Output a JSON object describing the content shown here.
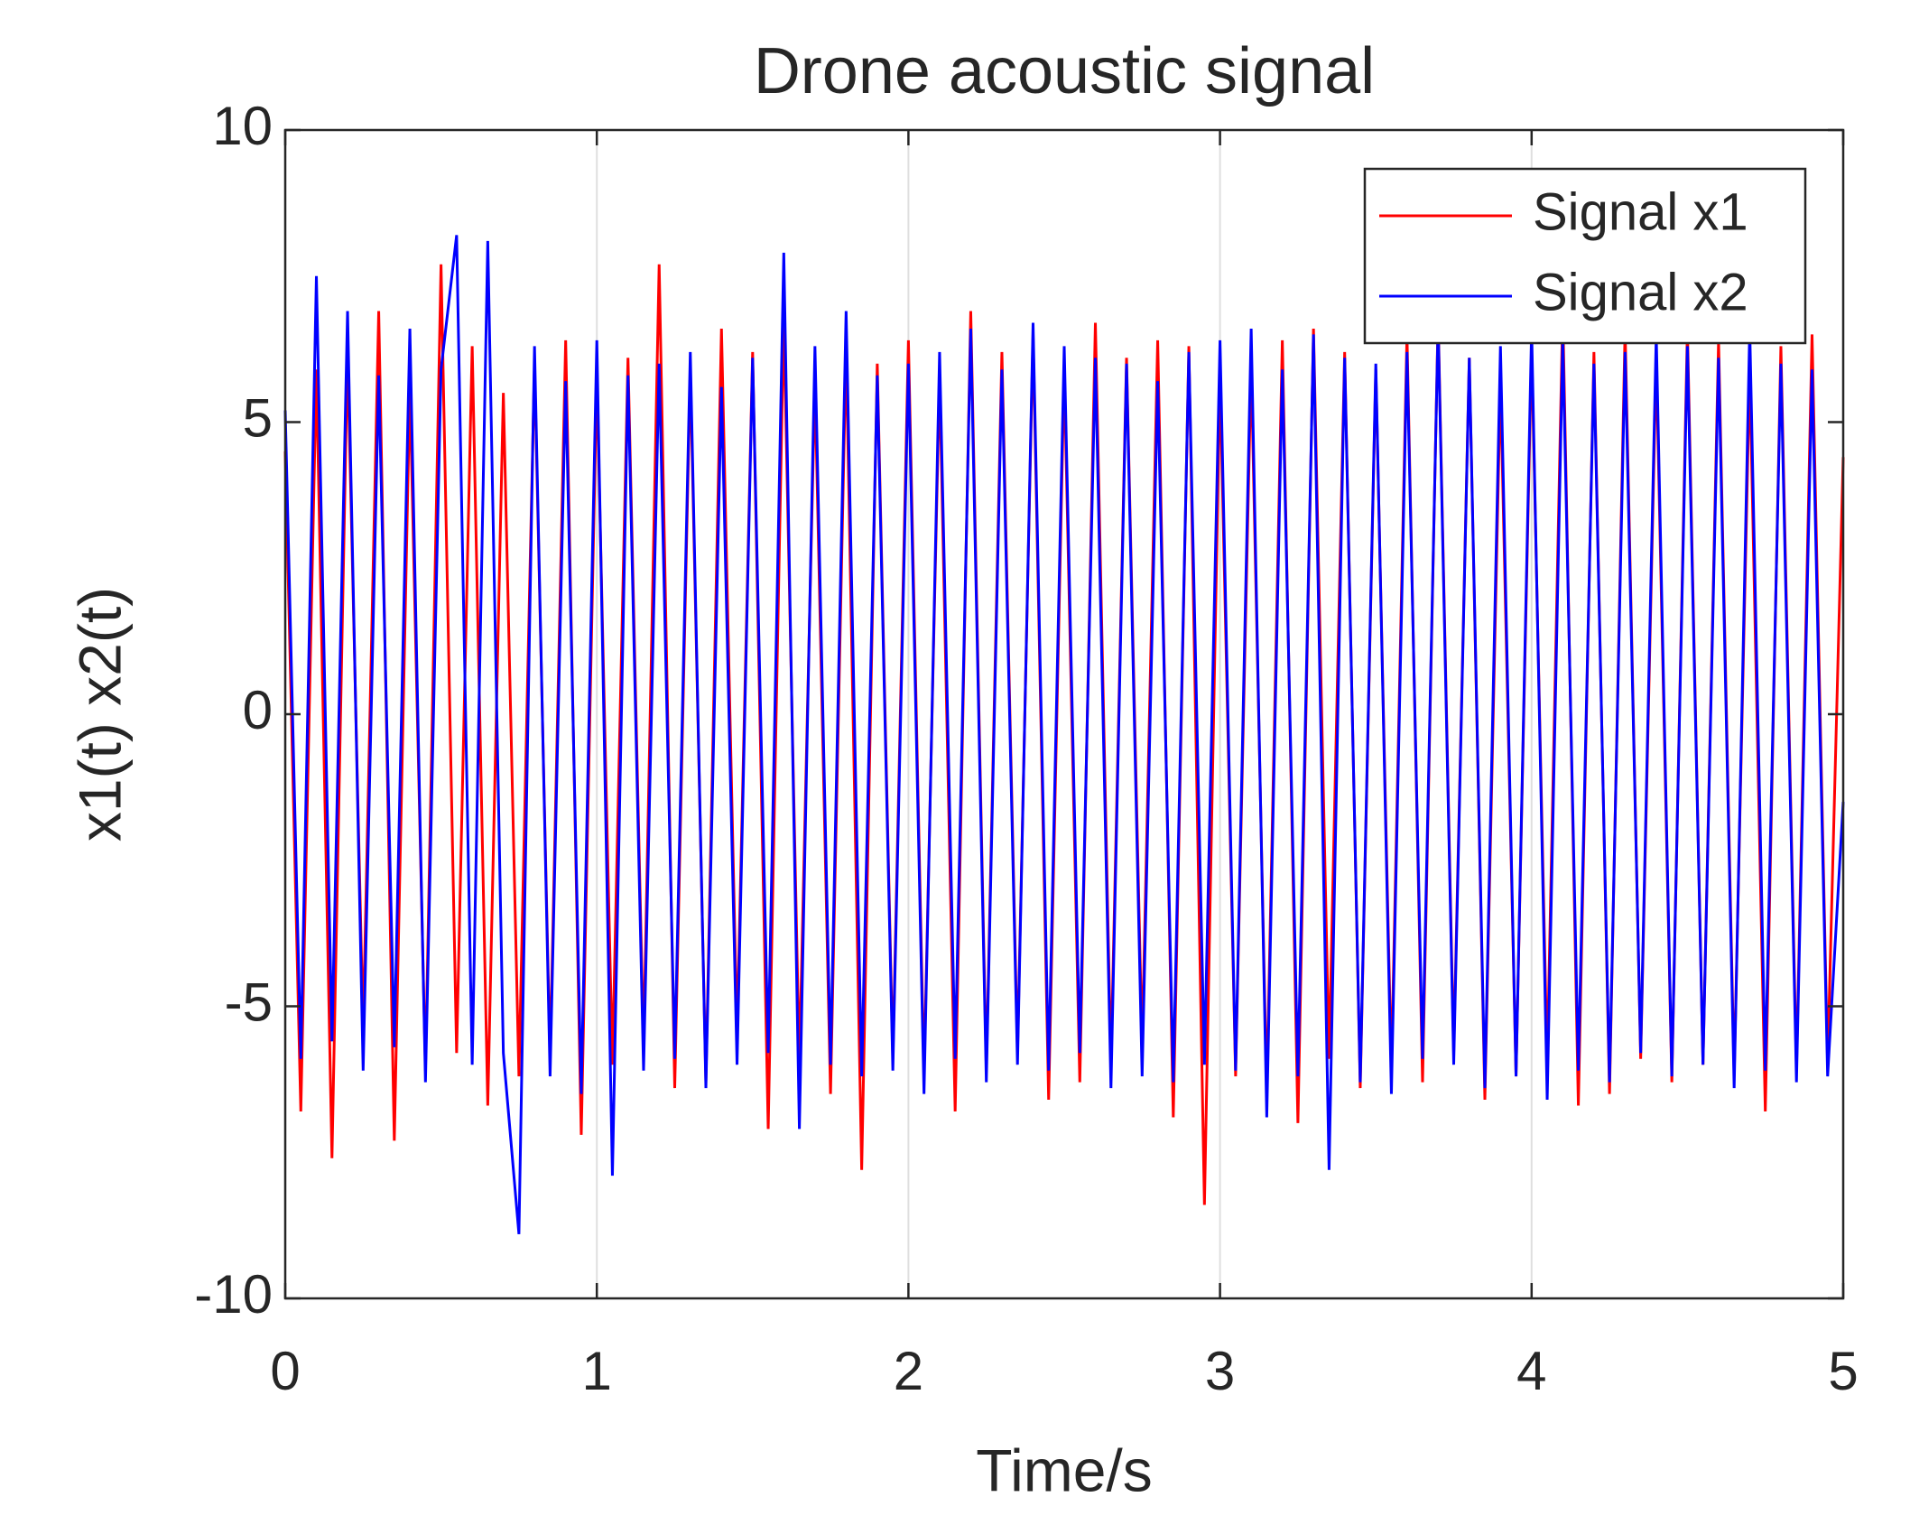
{
  "chart_data": {
    "type": "line",
    "title": "Drone acoustic signal",
    "xlabel": "Time/s",
    "ylabel": "x1(t) x2(t)",
    "x": [
      0,
      0.05,
      0.1,
      0.15,
      0.2,
      0.25,
      0.3,
      0.35,
      0.4,
      0.45,
      0.5,
      0.55,
      0.6,
      0.65,
      0.7,
      0.75,
      0.8,
      0.85,
      0.9,
      0.95,
      1,
      1.05,
      1.1,
      1.15,
      1.2,
      1.25,
      1.3,
      1.35,
      1.4,
      1.45,
      1.5,
      1.55,
      1.6,
      1.65,
      1.7,
      1.75,
      1.8,
      1.85,
      1.9,
      1.95,
      2,
      2.05,
      2.1,
      2.15,
      2.2,
      2.25,
      2.3,
      2.35,
      2.4,
      2.45,
      2.5,
      2.55,
      2.6,
      2.65,
      2.7,
      2.75,
      2.8,
      2.85,
      2.9,
      2.95,
      3,
      3.05,
      3.1,
      3.15,
      3.2,
      3.25,
      3.3,
      3.35,
      3.4,
      3.45,
      3.5,
      3.55,
      3.6,
      3.65,
      3.7,
      3.75,
      3.8,
      3.85,
      3.9,
      3.95,
      4,
      4.05,
      4.1,
      4.15,
      4.2,
      4.25,
      4.3,
      4.35,
      4.4,
      4.45,
      4.5,
      4.55,
      4.6,
      4.65,
      4.7,
      4.75,
      4.8,
      4.85,
      4.9,
      4.95,
      5
    ],
    "series": [
      {
        "name": "Signal x1",
        "color": "#ff0000",
        "values": [
          4.5,
          -6.8,
          5.9,
          -7.6,
          6.2,
          -5.4,
          6.9,
          -7.3,
          5.6,
          -6.1,
          7.7,
          -5.8,
          6.3,
          -6.7,
          5.5,
          -6.2,
          6.0,
          -5.9,
          6.4,
          -7.2,
          5.8,
          -6.0,
          6.1,
          -5.7,
          7.7,
          -6.4,
          5.9,
          -6.3,
          6.6,
          -5.5,
          6.2,
          -7.1,
          6.8,
          -6.0,
          5.7,
          -6.5,
          6.3,
          -7.8,
          6.0,
          -5.9,
          6.4,
          -6.2,
          5.8,
          -6.8,
          6.9,
          -6.1,
          6.2,
          -5.8,
          6.5,
          -6.6,
          5.9,
          -6.3,
          6.7,
          -6.0,
          6.1,
          -5.7,
          6.4,
          -6.9,
          6.3,
          -8.4,
          5.8,
          -6.2,
          6.0,
          -6.5,
          6.4,
          -7.0,
          6.6,
          -5.9,
          6.2,
          -6.4,
          5.9,
          -6.1,
          6.5,
          -6.3,
          6.8,
          -5.8,
          6.1,
          -6.6,
          5.7,
          -6.2,
          6.3,
          -6.0,
          6.9,
          -6.7,
          6.2,
          -6.5,
          6.6,
          -5.9,
          6.1,
          -6.3,
          6.6,
          -6.0,
          6.4,
          -6.2,
          5.9,
          -6.8,
          6.3,
          -6.1,
          6.5,
          -6.0,
          4.4
        ]
      },
      {
        "name": "Signal x2",
        "color": "#0000ff",
        "values": [
          5.2,
          -5.9,
          7.5,
          -5.6,
          6.9,
          -6.1,
          5.8,
          -5.7,
          6.6,
          -6.3,
          5.9,
          8.2,
          -6.0,
          8.1,
          -5.8,
          -8.9,
          6.3,
          -6.2,
          5.7,
          -6.5,
          6.4,
          -7.9,
          5.8,
          -6.1,
          6.0,
          -5.9,
          6.2,
          -6.4,
          5.6,
          -6.0,
          6.1,
          -5.8,
          7.9,
          -7.1,
          6.3,
          -6.0,
          6.9,
          -6.2,
          5.8,
          -6.1,
          6.0,
          -6.5,
          6.2,
          -5.9,
          6.6,
          -6.3,
          5.9,
          -6.0,
          6.7,
          -6.1,
          6.3,
          -5.8,
          6.1,
          -6.4,
          6.0,
          -6.2,
          5.7,
          -6.3,
          6.2,
          -6.0,
          6.4,
          -6.1,
          6.6,
          -6.9,
          5.9,
          -6.2,
          6.5,
          -7.8,
          6.1,
          -6.3,
          6.0,
          -6.5,
          6.2,
          -5.9,
          6.7,
          -6.0,
          6.1,
          -6.4,
          6.3,
          -6.2,
          6.6,
          -6.6,
          6.4,
          -6.1,
          6.0,
          -6.3,
          6.2,
          -5.8,
          6.5,
          -6.2,
          6.3,
          -6.0,
          6.1,
          -6.4,
          6.6,
          -6.1,
          6.0,
          -6.3,
          5.9,
          -6.2,
          -1.5
        ]
      }
    ],
    "xlim": [
      0,
      5
    ],
    "xticks": [
      0,
      1,
      2,
      3,
      4,
      5
    ],
    "ylim": [
      -10,
      10
    ],
    "yticks": [
      -10,
      -5,
      0,
      5,
      10
    ],
    "grid": true,
    "legend": "northeast"
  }
}
